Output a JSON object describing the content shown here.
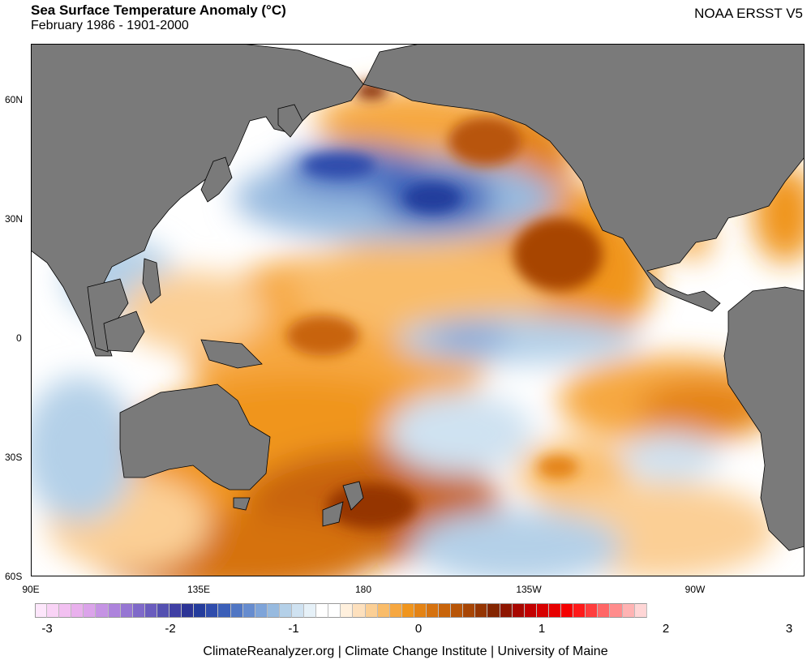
{
  "header": {
    "title": "Sea Surface Temperature Anomaly (°C)",
    "subtitle": "February 1986 - 1901-2000",
    "dataset": "NOAA ERSST V5"
  },
  "axes": {
    "y_ticks": [
      "60N",
      "30N",
      "0",
      "30S",
      "60S"
    ],
    "x_ticks": [
      "90E",
      "135E",
      "180",
      "135W",
      "90W"
    ]
  },
  "colorbar": {
    "ticks": [
      "-3",
      "-2",
      "-1",
      "0",
      "1",
      "2",
      "3"
    ],
    "colors": [
      "#fde6fb",
      "#f9d3f6",
      "#f2c0f1",
      "#e9b0ed",
      "#dba3ea",
      "#c593e4",
      "#ad83dc",
      "#9676d3",
      "#7f69c9",
      "#6a5cbe",
      "#5450b1",
      "#3f3fa4",
      "#2c3496",
      "#243c9c",
      "#2f4cac",
      "#3b5fb8",
      "#5076c4",
      "#668ccf",
      "#7ea4d9",
      "#97badf",
      "#b4d0e8",
      "#cfe2f1",
      "#e6f1f8",
      "#ffffff",
      "#ffffff",
      "#fff0dd",
      "#fde0bd",
      "#fbcf95",
      "#f9bc69",
      "#f6a740",
      "#f0951d",
      "#e48314",
      "#d6720f",
      "#c8640b",
      "#b85507",
      "#a74504",
      "#953502",
      "#832500",
      "#8e1500",
      "#a80700",
      "#c20000",
      "#d70000",
      "#e60000",
      "#f50000",
      "#ff1a1a",
      "#ff3d3d",
      "#ff6666",
      "#ff8c8c",
      "#ffb3b3",
      "#ffd6d6"
    ]
  },
  "map": {
    "land_color": "#7a7a7a",
    "ocean_neutral": "#ffffff"
  },
  "footer": {
    "credit": "ClimateReanalyzer.org | Climate Change Institute | University of Maine"
  }
}
